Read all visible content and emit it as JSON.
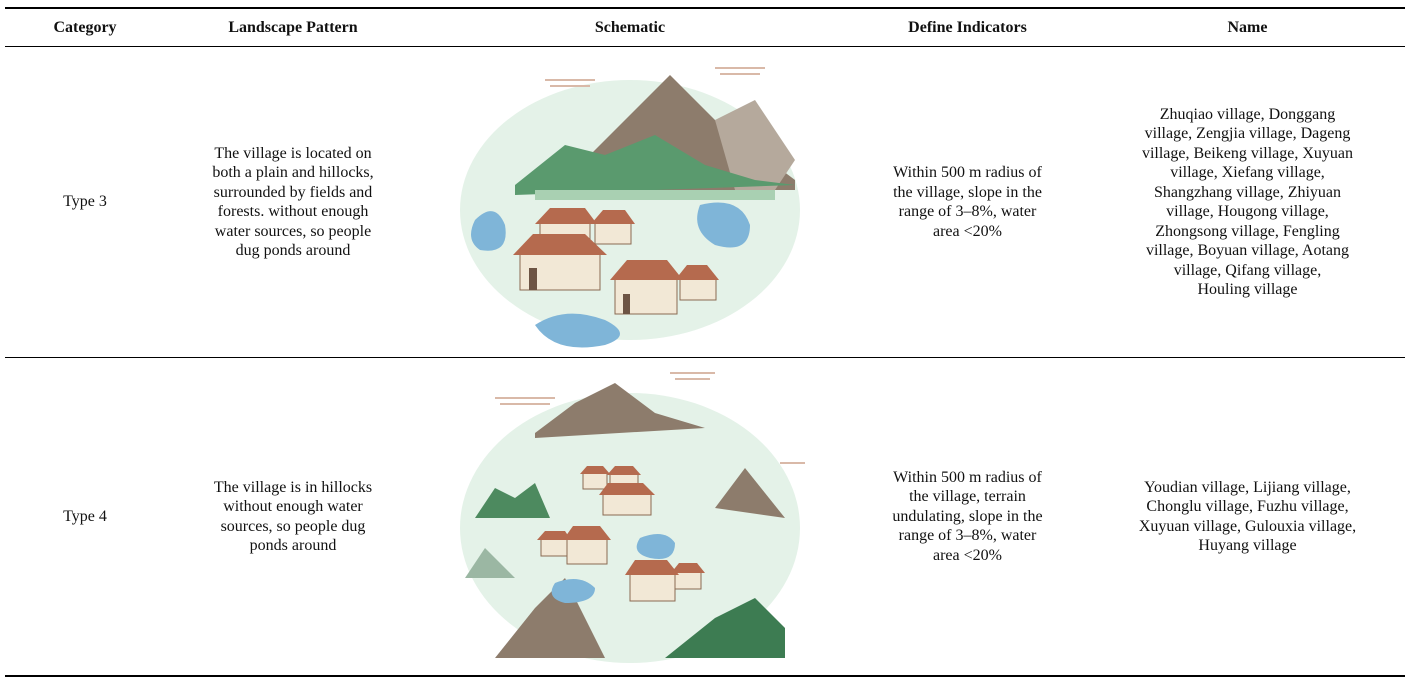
{
  "table": {
    "headers": [
      "Category",
      "Landscape Pattern",
      "Schematic",
      "Define Indicators",
      "Name"
    ],
    "rows": [
      {
        "category": "Type 3",
        "pattern": [
          "The village is located on",
          "both a plain and hillocks,",
          "surrounded by fields and",
          "forests. without enough",
          "water sources, so people",
          "dug ponds around"
        ],
        "indicators": [
          "Within 500 m radius of",
          "the village, slope in the",
          "range of 3–8%, water",
          "area <20%"
        ],
        "name": [
          "Zhuqiao village, Donggang",
          "village, Zengjia village, Dageng",
          "village, Beikeng village, Xuyuan",
          "village, Xiefang village,",
          "Shangzhang village, Zhiyuan",
          "village, Hougong village,",
          "Zhongsong village, Fengling",
          "village, Boyuan village, Aotang",
          "village, Qifang village,",
          "Houling village"
        ]
      },
      {
        "category": "Type 4",
        "pattern": [
          "The village is in hillocks",
          "without enough water",
          "sources, so people dug",
          "ponds around"
        ],
        "indicators": [
          "Within 500 m radius of",
          "the village, terrain",
          "undulating, slope in the",
          "range of 3–8%, water",
          "area <20%"
        ],
        "name": [
          "Youdian village, Lijiang village,",
          "Chonglu village, Fuzhu village,",
          "Xuyuan village, Gulouxia village,",
          "Huyang village"
        ]
      }
    ]
  }
}
